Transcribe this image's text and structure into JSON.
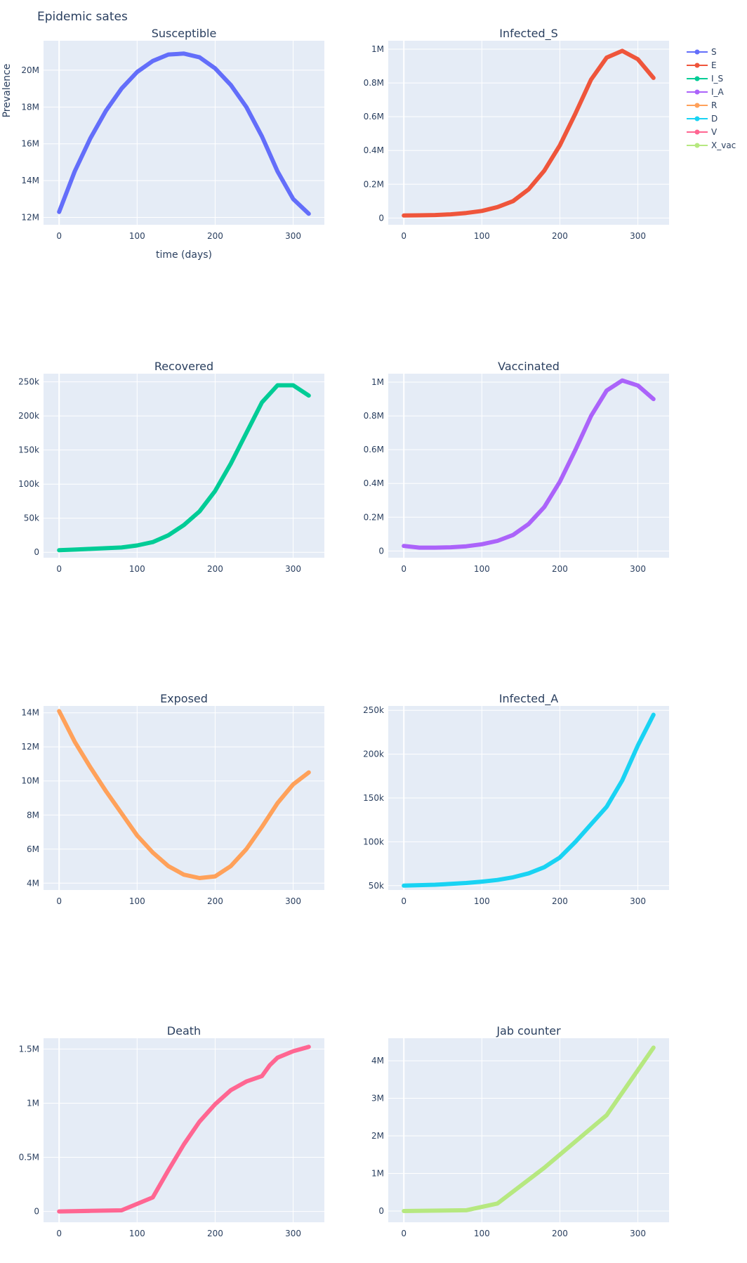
{
  "figure": {
    "title": "Epidemic sates"
  },
  "legend": {
    "placement": "top-right",
    "items": [
      {
        "name": "S",
        "color": "#636efa"
      },
      {
        "name": "E",
        "color": "#EF553B"
      },
      {
        "name": "I_S",
        "color": "#00cc96"
      },
      {
        "name": "I_A",
        "color": "#ab63fa"
      },
      {
        "name": "R",
        "color": "#FFA15A"
      },
      {
        "name": "D",
        "color": "#19d3f3"
      },
      {
        "name": "V",
        "color": "#FF6692"
      },
      {
        "name": "X_vac",
        "color": "#B6E880"
      }
    ]
  },
  "chart_data": [
    {
      "type": "line",
      "title": "Susceptible",
      "xlabel": "time (days)",
      "ylabel": "Prevalence",
      "color": "#636efa",
      "xlim": [
        -20,
        340
      ],
      "ylim": [
        11.6,
        21.6
      ],
      "xticks": [
        {
          "v": 0,
          "t": "0"
        },
        {
          "v": 100,
          "t": "100"
        },
        {
          "v": 200,
          "t": "200"
        },
        {
          "v": 300,
          "t": "300"
        }
      ],
      "yticks": [
        {
          "v": 12,
          "t": "12M"
        },
        {
          "v": 14,
          "t": "14M"
        },
        {
          "v": 16,
          "t": "16M"
        },
        {
          "v": 18,
          "t": "18M"
        },
        {
          "v": 20,
          "t": "20M"
        }
      ],
      "x": [
        0,
        20,
        40,
        60,
        80,
        100,
        120,
        140,
        160,
        180,
        200,
        220,
        240,
        260,
        280,
        300,
        320
      ],
      "y": [
        12.3,
        14.5,
        16.3,
        17.8,
        19.0,
        19.9,
        20.5,
        20.85,
        20.9,
        20.7,
        20.1,
        19.2,
        18.0,
        16.4,
        14.5,
        13.0,
        12.2
      ]
    },
    {
      "type": "line",
      "title": "Infected_S",
      "xlabel": "",
      "ylabel": "",
      "color": "#EF553B",
      "xlim": [
        -20,
        340
      ],
      "ylim": [
        -0.04,
        1.05
      ],
      "xticks": [
        {
          "v": 0,
          "t": "0"
        },
        {
          "v": 100,
          "t": "100"
        },
        {
          "v": 200,
          "t": "200"
        },
        {
          "v": 300,
          "t": "300"
        }
      ],
      "yticks": [
        {
          "v": 0,
          "t": "0"
        },
        {
          "v": 0.2,
          "t": "0.2M"
        },
        {
          "v": 0.4,
          "t": "0.4M"
        },
        {
          "v": 0.6,
          "t": "0.6M"
        },
        {
          "v": 0.8,
          "t": "0.8M"
        },
        {
          "v": 1.0,
          "t": "1M"
        }
      ],
      "x": [
        0,
        20,
        40,
        60,
        80,
        100,
        120,
        140,
        160,
        180,
        200,
        220,
        240,
        260,
        280,
        300,
        320
      ],
      "y": [
        0.015,
        0.016,
        0.018,
        0.022,
        0.03,
        0.042,
        0.065,
        0.1,
        0.17,
        0.28,
        0.43,
        0.62,
        0.82,
        0.95,
        0.99,
        0.94,
        0.83
      ]
    },
    {
      "type": "line",
      "title": "Recovered",
      "xlabel": "",
      "ylabel": "",
      "color": "#00cc96",
      "xlim": [
        -20,
        340
      ],
      "ylim": [
        -8,
        262
      ],
      "xticks": [
        {
          "v": 0,
          "t": "0"
        },
        {
          "v": 100,
          "t": "100"
        },
        {
          "v": 200,
          "t": "200"
        },
        {
          "v": 300,
          "t": "300"
        }
      ],
      "yticks": [
        {
          "v": 0,
          "t": "0"
        },
        {
          "v": 50,
          "t": "50k"
        },
        {
          "v": 100,
          "t": "100k"
        },
        {
          "v": 150,
          "t": "150k"
        },
        {
          "v": 200,
          "t": "200k"
        },
        {
          "v": 250,
          "t": "250k"
        }
      ],
      "x": [
        0,
        20,
        40,
        60,
        80,
        100,
        120,
        140,
        160,
        180,
        200,
        220,
        240,
        260,
        280,
        300,
        320
      ],
      "y": [
        3,
        4,
        5,
        6,
        7,
        10,
        15,
        25,
        40,
        60,
        90,
        130,
        175,
        220,
        245,
        245,
        230
      ]
    },
    {
      "type": "line",
      "title": "Vaccinated",
      "xlabel": "",
      "ylabel": "",
      "color": "#ab63fa",
      "xlim": [
        -20,
        340
      ],
      "ylim": [
        -0.04,
        1.05
      ],
      "xticks": [
        {
          "v": 0,
          "t": "0"
        },
        {
          "v": 100,
          "t": "100"
        },
        {
          "v": 200,
          "t": "200"
        },
        {
          "v": 300,
          "t": "300"
        }
      ],
      "yticks": [
        {
          "v": 0,
          "t": "0"
        },
        {
          "v": 0.2,
          "t": "0.2M"
        },
        {
          "v": 0.4,
          "t": "0.4M"
        },
        {
          "v": 0.6,
          "t": "0.6M"
        },
        {
          "v": 0.8,
          "t": "0.8M"
        },
        {
          "v": 1.0,
          "t": "1M"
        }
      ],
      "x": [
        0,
        20,
        40,
        60,
        80,
        100,
        120,
        140,
        160,
        180,
        200,
        220,
        240,
        260,
        280,
        300,
        320
      ],
      "y": [
        0.03,
        0.02,
        0.02,
        0.022,
        0.028,
        0.04,
        0.06,
        0.095,
        0.16,
        0.26,
        0.41,
        0.6,
        0.8,
        0.95,
        1.01,
        0.98,
        0.9
      ]
    },
    {
      "type": "line",
      "title": "Exposed",
      "xlabel": "",
      "ylabel": "",
      "color": "#FFA15A",
      "xlim": [
        -20,
        340
      ],
      "ylim": [
        3.6,
        14.4
      ],
      "xticks": [
        {
          "v": 0,
          "t": "0"
        },
        {
          "v": 100,
          "t": "100"
        },
        {
          "v": 200,
          "t": "200"
        },
        {
          "v": 300,
          "t": "300"
        }
      ],
      "yticks": [
        {
          "v": 4,
          "t": "4M"
        },
        {
          "v": 6,
          "t": "6M"
        },
        {
          "v": 8,
          "t": "8M"
        },
        {
          "v": 10,
          "t": "10M"
        },
        {
          "v": 12,
          "t": "12M"
        },
        {
          "v": 14,
          "t": "14M"
        }
      ],
      "x": [
        0,
        20,
        40,
        60,
        80,
        100,
        120,
        140,
        160,
        180,
        200,
        220,
        240,
        260,
        280,
        300,
        320
      ],
      "y": [
        14.1,
        12.3,
        10.8,
        9.4,
        8.1,
        6.8,
        5.8,
        5.0,
        4.5,
        4.3,
        4.4,
        5.0,
        6.0,
        7.3,
        8.7,
        9.8,
        10.5
      ]
    },
    {
      "type": "line",
      "title": "Infected_A",
      "xlabel": "",
      "ylabel": "",
      "color": "#19d3f3",
      "xlim": [
        -20,
        340
      ],
      "ylim": [
        45,
        255
      ],
      "xticks": [
        {
          "v": 0,
          "t": "0"
        },
        {
          "v": 100,
          "t": "100"
        },
        {
          "v": 200,
          "t": "200"
        },
        {
          "v": 300,
          "t": "300"
        }
      ],
      "yticks": [
        {
          "v": 50,
          "t": "50k"
        },
        {
          "v": 100,
          "t": "100k"
        },
        {
          "v": 150,
          "t": "150k"
        },
        {
          "v": 200,
          "t": "200k"
        },
        {
          "v": 250,
          "t": "250k"
        }
      ],
      "x": [
        0,
        20,
        40,
        60,
        80,
        100,
        120,
        140,
        160,
        180,
        200,
        220,
        240,
        260,
        280,
        300,
        320
      ],
      "y": [
        50,
        50.5,
        51,
        52,
        53,
        54.5,
        56.5,
        59.5,
        64,
        71,
        82,
        100,
        120,
        140,
        170,
        210,
        245
      ]
    },
    {
      "type": "line",
      "title": "Death",
      "xlabel": "",
      "ylabel": "",
      "color": "#FF6692",
      "xlim": [
        -20,
        340
      ],
      "ylim": [
        -0.1,
        1.6
      ],
      "xticks": [
        {
          "v": 0,
          "t": "0"
        },
        {
          "v": 100,
          "t": "100"
        },
        {
          "v": 200,
          "t": "200"
        },
        {
          "v": 300,
          "t": "300"
        }
      ],
      "yticks": [
        {
          "v": 0,
          "t": "0"
        },
        {
          "v": 0.5,
          "t": "0.5M"
        },
        {
          "v": 1.0,
          "t": "1M"
        },
        {
          "v": 1.5,
          "t": "1.5M"
        }
      ],
      "x": [
        0,
        40,
        80,
        120,
        140,
        160,
        180,
        200,
        220,
        240,
        260,
        270,
        280,
        300,
        320
      ],
      "y": [
        0,
        0.005,
        0.01,
        0.13,
        0.38,
        0.62,
        0.83,
        0.99,
        1.12,
        1.2,
        1.25,
        1.35,
        1.42,
        1.48,
        1.52
      ]
    },
    {
      "type": "line",
      "title": "Jab counter",
      "xlabel": "",
      "ylabel": "",
      "color": "#B6E880",
      "xlim": [
        -20,
        340
      ],
      "ylim": [
        -0.3,
        4.6
      ],
      "xticks": [
        {
          "v": 0,
          "t": "0"
        },
        {
          "v": 100,
          "t": "100"
        },
        {
          "v": 200,
          "t": "200"
        },
        {
          "v": 300,
          "t": "300"
        }
      ],
      "yticks": [
        {
          "v": 0,
          "t": "0"
        },
        {
          "v": 1,
          "t": "1M"
        },
        {
          "v": 2,
          "t": "2M"
        },
        {
          "v": 3,
          "t": "3M"
        },
        {
          "v": 4,
          "t": "4M"
        }
      ],
      "x": [
        0,
        80,
        120,
        180,
        260,
        320
      ],
      "y": [
        0,
        0.02,
        0.2,
        1.15,
        2.55,
        4.35
      ]
    }
  ]
}
